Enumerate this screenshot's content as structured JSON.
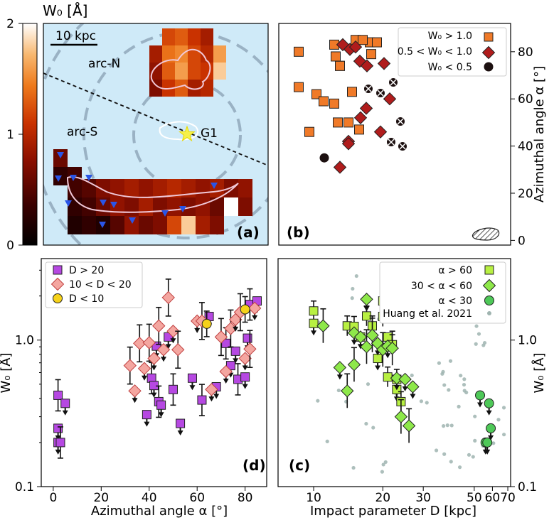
{
  "colorbar": {
    "label": "W₀ [Å]",
    "ticks": [
      "0",
      "1",
      "2"
    ],
    "range": [
      0,
      2
    ],
    "colormap": "gist_heat"
  },
  "panel_a": {
    "tag": "(a)",
    "scale_label": "10 kpc",
    "labels": {
      "arc_n": "arc-N",
      "arc_s": "arc-S",
      "galaxy": "G1"
    },
    "bg_color": "#cfeaf8",
    "star_color": "#f6f04a",
    "marker_color": "#2a55e6"
  },
  "panel_b": {
    "tag": "(b)",
    "ylabel": "Azimuthal angle α [°]",
    "yticks": [
      "0",
      "20",
      "40",
      "60",
      "80"
    ],
    "legend": [
      "W₀ > 1.0",
      "0.5 < W₀ < 1.0",
      "W₀ < 0.5"
    ],
    "colors": {
      "strong": "#f07a28",
      "mid": "#b01c1c",
      "weak": "#1c1010"
    }
  },
  "panel_d": {
    "tag": "(d)",
    "xlabel": "Azimuthal angle α [°]",
    "ylabel": "W₀ [Å]",
    "xticks": [
      "0",
      "20",
      "40",
      "60",
      "80"
    ],
    "yticks": [
      "0.1",
      "1.0"
    ],
    "legend": [
      "D > 20",
      "10 < D < 20",
      "D < 10"
    ],
    "colors": {
      "far": "#b648e2",
      "mid": "#f4a6a0",
      "near": "#f6d21a"
    }
  },
  "panel_c": {
    "tag": "(c)",
    "xlabel": "Impact parameter D [kpc]",
    "ylabel": "W₀ [Å]",
    "xticks": [
      "10",
      "20",
      "30",
      "50",
      "60",
      "70"
    ],
    "yticks": [
      "0.1",
      "1.0"
    ],
    "legend": [
      "α > 60",
      "30 < α < 60",
      "α < 30",
      "Huang et al. 2021"
    ],
    "colors": {
      "high": "#b8f042",
      "mid": "#8ee84a",
      "low": "#4ec858",
      "ref": "#9fb4b0"
    }
  },
  "chart_data": [
    {
      "panel": "b",
      "type": "scatter",
      "ylabel": "Azimuthal angle α [°]",
      "ylim": [
        -2,
        92
      ],
      "series": [
        {
          "name": "W₀ > 1.0",
          "values": [
            80,
            65,
            46,
            58,
            78,
            74,
            83,
            85,
            84,
            79,
            63,
            47,
            50,
            62,
            59,
            50,
            74,
            85,
            84
          ]
        },
        {
          "name": "0.5 < W₀ < 1.0",
          "values": [
            83,
            81,
            82,
            76,
            74,
            42,
            31,
            41,
            52,
            46,
            56,
            60,
            75
          ]
        },
        {
          "name": "W₀ < 0.5",
          "values": [
            35
          ]
        }
      ]
    },
    {
      "panel": "d",
      "type": "scatter",
      "xlabel": "Azimuthal angle α [°]",
      "ylabel": "W₀ [Å]",
      "xlim": [
        -5,
        89
      ],
      "ylim": [
        0.1,
        3.6
      ],
      "yscale": "log",
      "series": [
        {
          "name": "D > 20",
          "x": [
            2,
            2,
            2,
            3,
            5,
            39,
            41,
            42,
            43,
            44,
            45,
            48,
            50,
            53,
            58,
            62,
            65,
            68,
            72,
            74,
            76,
            77,
            80,
            81,
            82,
            85
          ],
          "y": [
            0.42,
            0.25,
            0.2,
            0.2,
            0.37,
            0.31,
            0.55,
            0.49,
            0.91,
            0.38,
            0.36,
            1.05,
            0.46,
            0.27,
            0.55,
            0.39,
            1.45,
            0.48,
            0.95,
            0.67,
            0.84,
            0.54,
            0.56,
            1.03,
            1.75,
            1.85
          ]
        },
        {
          "name": "10 < D < 20",
          "x": [
            32,
            34,
            36,
            38,
            40,
            42,
            44,
            46,
            48,
            50,
            52,
            60,
            62,
            66,
            70,
            72,
            74,
            76,
            78,
            80,
            82,
            84
          ],
          "y": [
            0.67,
            0.45,
            0.95,
            0.64,
            0.96,
            0.75,
            1.25,
            0.86,
            1.95,
            1.15,
            0.86,
            1.35,
            1.35,
            0.46,
            1.05,
            0.61,
            1.2,
            1.38,
            1.55,
            0.75,
            0.87,
            1.65
          ]
        },
        {
          "name": "D < 10",
          "x": [
            64,
            80
          ],
          "y": [
            1.29,
            1.62
          ]
        }
      ]
    },
    {
      "panel": "c",
      "type": "scatter",
      "xlabel": "Impact parameter D [kpc]",
      "ylabel": "W₀ [Å]",
      "xlim": [
        7,
        72
      ],
      "ylim": [
        0.1,
        3.6
      ],
      "yscale": "log",
      "series": [
        {
          "name": "α > 60",
          "x": [
            10,
            10,
            14,
            15,
            16,
            17,
            18,
            19,
            20,
            20,
            21,
            21,
            22,
            23,
            23,
            24
          ],
          "y": [
            1.58,
            1.3,
            1.25,
            1.24,
            1.05,
            1.46,
            1.25,
            0.75,
            1.85,
            1.45,
            1.05,
            0.56,
            0.93,
            0.46,
            0.54,
            0.38
          ]
        },
        {
          "name": "30 < α < 60",
          "x": [
            11,
            13,
            14,
            15,
            15,
            16,
            17,
            17,
            18,
            19,
            20,
            21,
            22,
            23,
            24,
            25,
            26,
            27
          ],
          "y": [
            1.25,
            0.65,
            0.45,
            1.12,
            0.68,
            1.05,
            0.9,
            1.9,
            1.08,
            0.95,
            0.86,
            0.91,
            0.88,
            0.55,
            0.3,
            0.54,
            0.26,
            0.48
          ]
        },
        {
          "name": "α < 30",
          "x": [
            53,
            56,
            57,
            58,
            59
          ],
          "y": [
            0.42,
            0.2,
            0.2,
            0.37,
            0.25
          ]
        }
      ]
    }
  ]
}
